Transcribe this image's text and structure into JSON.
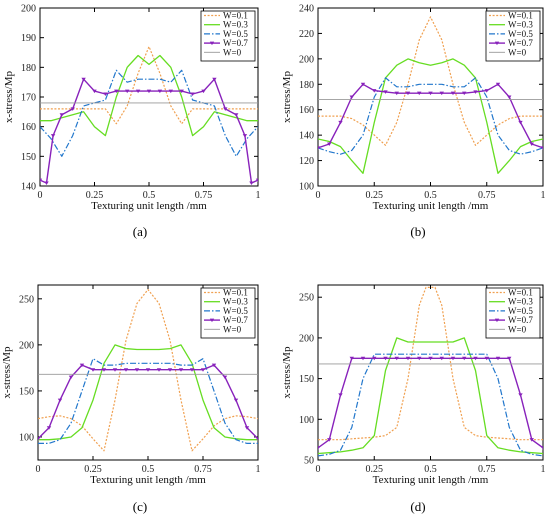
{
  "panel_captions": [
    "(a)",
    "(b)",
    "(c)",
    "(d)"
  ],
  "colors": {
    "W=0.1": "#f0a050",
    "W=0.3": "#66dd22",
    "W=0.5": "#2277cc",
    "W=0.7": "#8822bb",
    "W=0": "#999999"
  },
  "chart_data": [
    {
      "type": "line",
      "caption": "(a)",
      "xlabel": "Texturing unit length /mm",
      "ylabel": "x-stress/Mp",
      "xlim": [
        0,
        1
      ],
      "ylim": [
        140,
        200
      ],
      "xticks": [
        "0",
        "0.25",
        "0.5",
        "0.75",
        "1"
      ],
      "yticks": [
        "140",
        "150",
        "160",
        "170",
        "180",
        "190",
        "200"
      ],
      "legend": "top-right",
      "series": [
        {
          "name": "W=0.1",
          "x": [
            0,
            0.05,
            0.1,
            0.15,
            0.2,
            0.25,
            0.3,
            0.35,
            0.4,
            0.45,
            0.5,
            0.55,
            0.6,
            0.65,
            0.7,
            0.75,
            0.8,
            0.85,
            0.9,
            0.95,
            1
          ],
          "y": [
            166,
            166,
            166,
            166,
            166,
            166,
            166,
            161,
            167,
            178,
            187,
            178,
            167,
            161,
            166,
            166,
            166,
            166,
            166,
            166,
            166
          ]
        },
        {
          "name": "W=0.3",
          "x": [
            0,
            0.05,
            0.1,
            0.15,
            0.2,
            0.25,
            0.3,
            0.35,
            0.4,
            0.45,
            0.5,
            0.55,
            0.6,
            0.65,
            0.7,
            0.75,
            0.8,
            0.85,
            0.9,
            0.95,
            1
          ],
          "y": [
            162,
            162,
            163,
            164,
            165,
            160,
            157,
            170,
            180,
            184,
            181,
            184,
            180,
            170,
            157,
            160,
            165,
            164,
            163,
            162,
            162
          ]
        },
        {
          "name": "W=0.5",
          "x": [
            0,
            0.05,
            0.1,
            0.15,
            0.2,
            0.25,
            0.3,
            0.35,
            0.4,
            0.45,
            0.5,
            0.55,
            0.6,
            0.65,
            0.7,
            0.75,
            0.8,
            0.85,
            0.9,
            0.95,
            1
          ],
          "y": [
            160,
            156,
            150,
            157,
            167,
            168,
            169,
            179,
            175,
            176,
            176,
            176,
            175,
            179,
            169,
            168,
            167,
            157,
            150,
            156,
            160
          ]
        },
        {
          "name": "W=0.7",
          "x": [
            0,
            0.03,
            0.06,
            0.1,
            0.15,
            0.2,
            0.25,
            0.3,
            0.35,
            0.4,
            0.45,
            0.5,
            0.55,
            0.6,
            0.65,
            0.7,
            0.75,
            0.8,
            0.85,
            0.9,
            0.94,
            0.97,
            1
          ],
          "y": [
            142,
            141,
            157,
            164,
            166,
            176,
            172,
            171,
            172,
            172,
            172,
            172,
            172,
            172,
            172,
            171,
            172,
            176,
            166,
            164,
            157,
            141,
            142
          ]
        },
        {
          "name": "W=0",
          "x": [
            0,
            1
          ],
          "y": [
            168,
            168
          ]
        }
      ]
    },
    {
      "type": "line",
      "caption": "(b)",
      "xlabel": "Texturing unit length /mm",
      "ylabel": "x-stress/Mp",
      "xlim": [
        0,
        1
      ],
      "ylim": [
        100,
        240
      ],
      "xticks": [
        "0",
        "0.25",
        "0.5",
        "0.75",
        "1"
      ],
      "yticks": [
        "100",
        "120",
        "140",
        "160",
        "180",
        "200",
        "220",
        "240"
      ],
      "legend": "top-right",
      "series": [
        {
          "name": "W=0.1",
          "x": [
            0,
            0.05,
            0.1,
            0.15,
            0.2,
            0.25,
            0.3,
            0.35,
            0.4,
            0.45,
            0.5,
            0.55,
            0.6,
            0.65,
            0.7,
            0.75,
            0.8,
            0.85,
            0.9,
            0.95,
            1
          ],
          "y": [
            155,
            155,
            155,
            153,
            148,
            140,
            132,
            150,
            180,
            215,
            233,
            215,
            180,
            150,
            132,
            140,
            148,
            153,
            155,
            155,
            155
          ]
        },
        {
          "name": "W=0.3",
          "x": [
            0,
            0.05,
            0.1,
            0.15,
            0.2,
            0.25,
            0.3,
            0.35,
            0.4,
            0.45,
            0.5,
            0.55,
            0.6,
            0.65,
            0.7,
            0.75,
            0.8,
            0.85,
            0.9,
            0.95,
            1
          ],
          "y": [
            137,
            135,
            131,
            120,
            110,
            150,
            185,
            195,
            200,
            197,
            195,
            197,
            200,
            195,
            185,
            150,
            110,
            120,
            131,
            135,
            137
          ]
        },
        {
          "name": "W=0.5",
          "x": [
            0,
            0.05,
            0.1,
            0.15,
            0.2,
            0.25,
            0.3,
            0.35,
            0.4,
            0.45,
            0.5,
            0.55,
            0.6,
            0.65,
            0.7,
            0.75,
            0.8,
            0.85,
            0.9,
            0.95,
            1
          ],
          "y": [
            130,
            127,
            125,
            128,
            140,
            170,
            185,
            178,
            178,
            180,
            180,
            180,
            178,
            178,
            185,
            170,
            140,
            128,
            125,
            127,
            130
          ]
        },
        {
          "name": "W=0.7",
          "x": [
            0,
            0.05,
            0.1,
            0.15,
            0.2,
            0.25,
            0.3,
            0.35,
            0.4,
            0.45,
            0.5,
            0.55,
            0.6,
            0.65,
            0.7,
            0.75,
            0.8,
            0.85,
            0.9,
            0.95,
            1
          ],
          "y": [
            130,
            133,
            150,
            170,
            180,
            175,
            174,
            173,
            173,
            173,
            173,
            173,
            173,
            173,
            174,
            175,
            180,
            170,
            150,
            133,
            130
          ]
        },
        {
          "name": "W=0",
          "x": [
            0,
            1
          ],
          "y": [
            168,
            168
          ]
        }
      ]
    },
    {
      "type": "line",
      "caption": "(c)",
      "xlabel": "Texturing unit length /mm",
      "ylabel": "x-stress/Mp",
      "xlim": [
        0,
        1
      ],
      "ylim": [
        75,
        265
      ],
      "xticks": [
        "0",
        "0.25",
        "0.5",
        "0.75",
        "1"
      ],
      "yticks": [
        "100",
        "150",
        "200",
        "250"
      ],
      "legend": "top-right",
      "series": [
        {
          "name": "W=0.1",
          "x": [
            0,
            0.05,
            0.1,
            0.15,
            0.2,
            0.25,
            0.3,
            0.35,
            0.4,
            0.45,
            0.5,
            0.55,
            0.6,
            0.65,
            0.7,
            0.75,
            0.8,
            0.85,
            0.9,
            0.95,
            1
          ],
          "y": [
            120,
            122,
            123,
            120,
            112,
            98,
            85,
            140,
            205,
            245,
            260,
            245,
            205,
            140,
            85,
            98,
            112,
            120,
            123,
            122,
            120
          ]
        },
        {
          "name": "W=0.3",
          "x": [
            0,
            0.05,
            0.1,
            0.15,
            0.2,
            0.25,
            0.3,
            0.35,
            0.4,
            0.45,
            0.5,
            0.55,
            0.6,
            0.65,
            0.7,
            0.75,
            0.8,
            0.85,
            0.9,
            0.95,
            1
          ],
          "y": [
            97,
            97,
            98,
            100,
            110,
            140,
            180,
            200,
            196,
            195,
            195,
            195,
            196,
            200,
            180,
            140,
            110,
            100,
            98,
            97,
            97
          ]
        },
        {
          "name": "W=0.5",
          "x": [
            0,
            0.05,
            0.1,
            0.15,
            0.2,
            0.25,
            0.3,
            0.35,
            0.4,
            0.45,
            0.5,
            0.55,
            0.6,
            0.65,
            0.7,
            0.75,
            0.8,
            0.85,
            0.9,
            0.95,
            1
          ],
          "y": [
            93,
            93,
            97,
            115,
            150,
            185,
            178,
            178,
            180,
            180,
            180,
            180,
            180,
            178,
            178,
            185,
            150,
            115,
            97,
            93,
            93
          ]
        },
        {
          "name": "W=0.7",
          "x": [
            0,
            0.05,
            0.1,
            0.15,
            0.2,
            0.25,
            0.3,
            0.35,
            0.4,
            0.45,
            0.5,
            0.55,
            0.6,
            0.65,
            0.7,
            0.75,
            0.8,
            0.85,
            0.9,
            0.95,
            1
          ],
          "y": [
            98,
            110,
            140,
            165,
            178,
            173,
            173,
            173,
            173,
            173,
            173,
            173,
            173,
            173,
            173,
            173,
            178,
            165,
            140,
            110,
            98
          ]
        },
        {
          "name": "W=0",
          "x": [
            0,
            1
          ],
          "y": [
            168,
            168
          ]
        }
      ]
    },
    {
      "type": "line",
      "caption": "(d)",
      "xlabel": "Texturing unit length /mm",
      "ylabel": "x-stress/Mp",
      "xlim": [
        0,
        1
      ],
      "ylim": [
        50,
        265
      ],
      "xticks": [
        "0",
        "0.25",
        "0.5",
        "0.75",
        "1"
      ],
      "yticks": [
        "50",
        "100",
        "150",
        "200",
        "250"
      ],
      "legend": "top-right",
      "series": [
        {
          "name": "W=0.1",
          "x": [
            0,
            0.05,
            0.1,
            0.15,
            0.2,
            0.25,
            0.3,
            0.35,
            0.4,
            0.45,
            0.48,
            0.52,
            0.55,
            0.6,
            0.65,
            0.7,
            0.75,
            0.8,
            0.85,
            0.9,
            0.95,
            1
          ],
          "y": [
            75,
            75,
            75,
            76,
            77,
            78,
            80,
            90,
            150,
            240,
            262,
            262,
            240,
            150,
            90,
            80,
            78,
            77,
            76,
            75,
            75,
            75
          ]
        },
        {
          "name": "W=0.3",
          "x": [
            0,
            0.05,
            0.1,
            0.15,
            0.2,
            0.25,
            0.3,
            0.35,
            0.4,
            0.45,
            0.5,
            0.55,
            0.6,
            0.65,
            0.7,
            0.75,
            0.8,
            0.85,
            0.9,
            0.95,
            1
          ],
          "y": [
            58,
            59,
            60,
            62,
            65,
            80,
            160,
            200,
            195,
            195,
            195,
            195,
            195,
            200,
            160,
            80,
            65,
            62,
            60,
            59,
            58
          ]
        },
        {
          "name": "W=0.5",
          "x": [
            0,
            0.05,
            0.1,
            0.15,
            0.2,
            0.25,
            0.3,
            0.35,
            0.4,
            0.45,
            0.5,
            0.55,
            0.6,
            0.65,
            0.7,
            0.75,
            0.8,
            0.85,
            0.9,
            0.95,
            1
          ],
          "y": [
            55,
            57,
            62,
            90,
            150,
            180,
            180,
            180,
            180,
            180,
            180,
            180,
            180,
            180,
            180,
            180,
            150,
            90,
            62,
            57,
            55
          ]
        },
        {
          "name": "W=0.7",
          "x": [
            0,
            0.05,
            0.1,
            0.15,
            0.2,
            0.25,
            0.3,
            0.35,
            0.4,
            0.45,
            0.5,
            0.55,
            0.6,
            0.65,
            0.7,
            0.75,
            0.8,
            0.85,
            0.9,
            0.95,
            1
          ],
          "y": [
            65,
            75,
            130,
            175,
            175,
            175,
            175,
            175,
            175,
            175,
            175,
            175,
            175,
            175,
            175,
            175,
            175,
            175,
            130,
            75,
            65
          ]
        },
        {
          "name": "W=0",
          "x": [
            0,
            1
          ],
          "y": [
            168,
            168
          ]
        }
      ]
    }
  ]
}
